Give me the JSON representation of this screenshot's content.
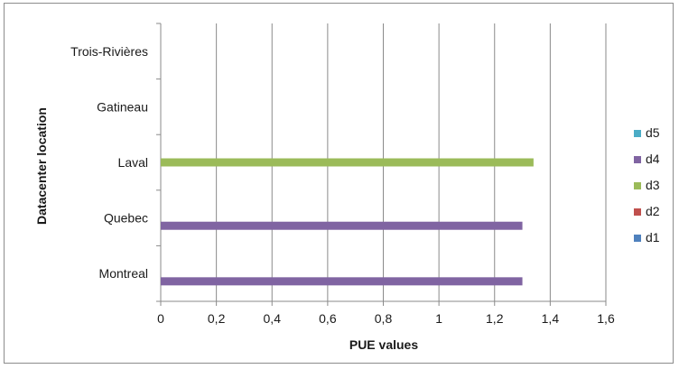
{
  "chart_data": {
    "type": "bar",
    "orientation": "horizontal",
    "title": "",
    "xlabel": "PUE values",
    "ylabel": "Datacenter location",
    "categories": [
      "Montreal",
      "Quebec",
      "Laval",
      "Gatineau",
      "Trois-Rivières"
    ],
    "xlim": [
      0,
      1.6
    ],
    "xticks": [
      "0",
      "0,2",
      "0,4",
      "0,6",
      "0,8",
      "1",
      "1,2",
      "1,4",
      "1,6"
    ],
    "grid": "vertical",
    "legend_position": "right",
    "series": [
      {
        "name": "d1",
        "color": "#4f81bd",
        "values": [
          null,
          null,
          null,
          null,
          null
        ]
      },
      {
        "name": "d2",
        "color": "#c0504d",
        "values": [
          null,
          null,
          null,
          null,
          null
        ]
      },
      {
        "name": "d3",
        "color": "#9bbb59",
        "values": [
          null,
          null,
          1.34,
          null,
          null
        ]
      },
      {
        "name": "d4",
        "color": "#8064a2",
        "values": [
          1.3,
          1.3,
          null,
          null,
          null
        ]
      },
      {
        "name": "d5",
        "color": "#4bacc6",
        "values": [
          null,
          null,
          null,
          null,
          null
        ]
      }
    ]
  }
}
